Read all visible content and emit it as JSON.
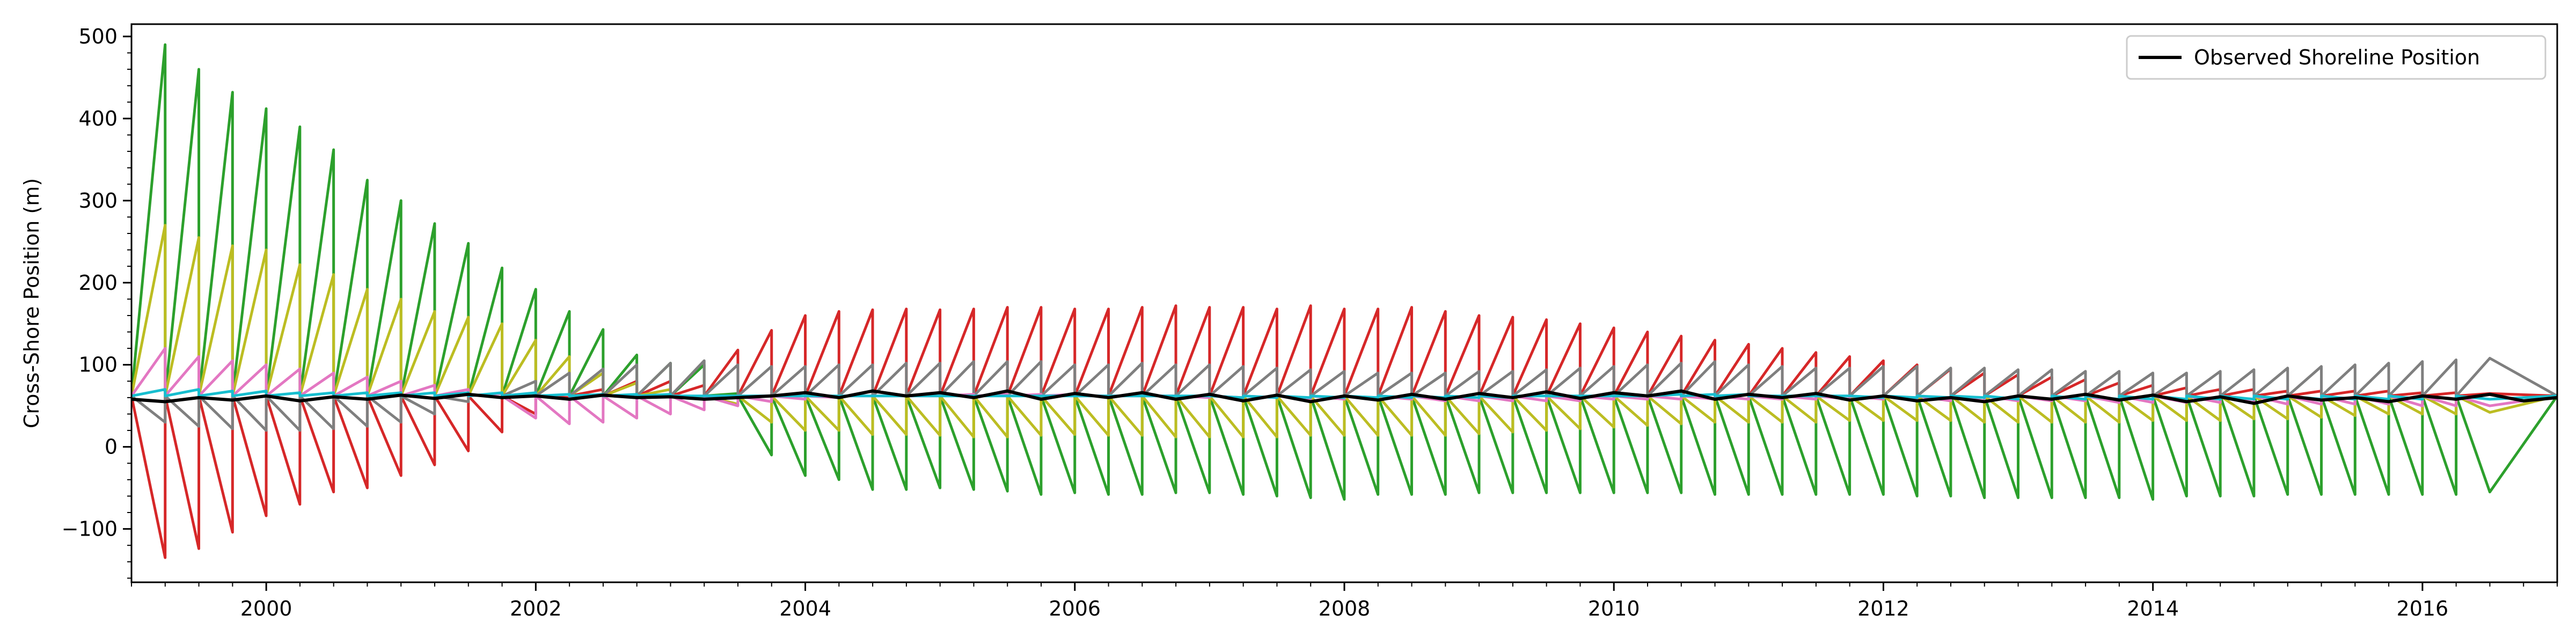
{
  "chart_data": {
    "type": "line",
    "title": "",
    "xlabel": "",
    "ylabel": "Cross-Shore Position (m)",
    "xlim": [
      1999.0,
      2017.0
    ],
    "ylim": [
      -165,
      515
    ],
    "x_ticks": [
      2000,
      2002,
      2004,
      2006,
      2008,
      2010,
      2012,
      2014,
      2016
    ],
    "x_tick_labels": [
      "2000",
      "2002",
      "2004",
      "2006",
      "2008",
      "2010",
      "2012",
      "2014",
      "2016"
    ],
    "y_ticks": [
      -100,
      0,
      100,
      200,
      300,
      400,
      500
    ],
    "y_tick_labels": [
      "−100",
      "0",
      "100",
      "200",
      "300",
      "400",
      "500"
    ],
    "grid": false,
    "legend": {
      "placement": "top-right",
      "entries": [
        "Observed Shoreline Position"
      ]
    },
    "observed": {
      "name": "Observed Shoreline Position",
      "color": "#000000",
      "x": [
        1999.0,
        1999.25,
        1999.5,
        1999.75,
        2000.0,
        2000.25,
        2000.5,
        2000.75,
        2001.0,
        2001.25,
        2001.5,
        2001.75,
        2002.0,
        2002.25,
        2002.5,
        2002.75,
        2003.0,
        2003.25,
        2003.5,
        2003.75,
        2004.0,
        2004.25,
        2004.5,
        2004.75,
        2005.0,
        2005.25,
        2005.5,
        2005.75,
        2006.0,
        2006.25,
        2006.5,
        2006.75,
        2007.0,
        2007.25,
        2007.5,
        2007.75,
        2008.0,
        2008.25,
        2008.5,
        2008.75,
        2009.0,
        2009.25,
        2009.5,
        2009.75,
        2010.0,
        2010.25,
        2010.5,
        2010.75,
        2011.0,
        2011.25,
        2011.5,
        2011.75,
        2012.0,
        2012.25,
        2012.5,
        2012.75,
        2013.0,
        2013.25,
        2013.5,
        2013.75,
        2014.0,
        2014.25,
        2014.5,
        2014.75,
        2015.0,
        2015.25,
        2015.5,
        2015.75,
        2016.0,
        2016.25,
        2016.5,
        2016.75,
        2017.0
      ],
      "y": [
        58,
        55,
        60,
        57,
        62,
        56,
        61,
        58,
        63,
        59,
        64,
        60,
        62,
        58,
        63,
        60,
        61,
        58,
        60,
        62,
        66,
        60,
        68,
        62,
        66,
        60,
        68,
        58,
        65,
        60,
        66,
        58,
        64,
        56,
        63,
        55,
        62,
        57,
        64,
        58,
        65,
        60,
        67,
        59,
        66,
        62,
        68,
        58,
        64,
        60,
        65,
        57,
        62,
        56,
        60,
        55,
        62,
        58,
        64,
        57,
        63,
        55,
        61,
        53,
        62,
        57,
        60,
        55,
        62,
        58,
        64,
        56,
        60
      ]
    },
    "ensemble": {
      "period_years": 0.25,
      "start_year": 1999.0,
      "baseline": 62,
      "members": [
        {
          "color": "#2ca02c",
          "amplitudes": [
            490,
            460,
            432,
            412,
            390,
            362,
            325,
            300,
            272,
            248,
            218,
            192,
            165,
            143,
            112,
            102,
            100,
            65,
            -10,
            -35,
            -40,
            -52,
            -52,
            -50,
            -52,
            -54,
            -58,
            -56,
            -58,
            -58,
            -56,
            -56,
            -58,
            -60,
            -62,
            -64,
            -58,
            -58,
            -58,
            -56,
            -56,
            -56,
            -56,
            -56,
            -56,
            -56,
            -58,
            -58,
            -58,
            -58,
            -58,
            -58,
            -60,
            -60,
            -62,
            -62,
            -62,
            -62,
            -62,
            -64,
            -60,
            -60,
            -60,
            -58,
            -58,
            -58,
            -58,
            -58,
            -58,
            -55
          ]
        },
        {
          "color": "#d62728",
          "amplitudes": [
            -135,
            -124,
            -104,
            -84,
            -70,
            -55,
            -50,
            -35,
            -22,
            -5,
            18,
            40,
            60,
            70,
            80,
            80,
            75,
            118,
            142,
            160,
            165,
            167,
            168,
            167,
            168,
            170,
            170,
            168,
            168,
            170,
            172,
            170,
            170,
            168,
            172,
            168,
            168,
            170,
            165,
            160,
            158,
            155,
            150,
            145,
            140,
            135,
            130,
            125,
            120,
            115,
            110,
            105,
            100,
            95,
            90,
            88,
            85,
            82,
            78,
            75,
            72,
            70,
            70,
            68,
            68,
            68,
            68,
            66,
            66,
            65
          ]
        },
        {
          "color": "#bcbd22",
          "amplitudes": [
            270,
            255,
            245,
            240,
            222,
            210,
            192,
            180,
            165,
            158,
            150,
            130,
            110,
            90,
            78,
            70,
            60,
            52,
            30,
            20,
            20,
            15,
            15,
            14,
            12,
            12,
            14,
            15,
            14,
            14,
            12,
            12,
            12,
            12,
            14,
            14,
            14,
            14,
            14,
            16,
            18,
            20,
            22,
            24,
            26,
            28,
            30,
            30,
            30,
            30,
            32,
            32,
            32,
            32,
            30,
            30,
            30,
            30,
            30,
            32,
            32,
            32,
            34,
            34,
            36,
            38,
            40,
            40,
            40,
            42
          ]
        },
        {
          "color": "#7f7f7f",
          "amplitudes": [
            30,
            25,
            22,
            20,
            20,
            22,
            25,
            30,
            40,
            55,
            65,
            80,
            90,
            95,
            100,
            102,
            105,
            100,
            98,
            98,
            100,
            100,
            102,
            102,
            104,
            104,
            104,
            100,
            100,
            102,
            100,
            100,
            98,
            96,
            94,
            92,
            90,
            90,
            90,
            92,
            92,
            94,
            96,
            98,
            100,
            102,
            104,
            100,
            98,
            96,
            96,
            98,
            98,
            96,
            96,
            94,
            94,
            92,
            92,
            90,
            90,
            92,
            94,
            96,
            98,
            100,
            102,
            104,
            106,
            108
          ]
        },
        {
          "color": "#e377c2",
          "amplitudes": [
            120,
            110,
            105,
            100,
            95,
            90,
            85,
            80,
            75,
            70,
            65,
            35,
            28,
            30,
            35,
            40,
            45,
            50,
            55,
            58,
            60,
            62,
            62,
            62,
            64,
            64,
            64,
            64,
            62,
            62,
            62,
            60,
            60,
            60,
            58,
            58,
            58,
            58,
            56,
            56,
            56,
            56,
            56,
            58,
            58,
            58,
            58,
            58,
            58,
            58,
            58,
            58,
            58,
            56,
            56,
            56,
            56,
            56,
            54,
            54,
            54,
            54,
            54,
            52,
            52,
            52,
            52,
            50,
            50,
            50
          ]
        },
        {
          "color": "#17becf",
          "amplitudes": [
            70,
            70,
            68,
            68,
            66,
            66,
            66,
            66,
            66,
            66,
            66,
            66,
            64,
            64,
            64,
            64,
            62,
            62,
            62,
            62,
            62,
            62,
            62,
            62,
            62,
            62,
            62,
            62,
            62,
            62,
            62,
            62,
            60,
            60,
            60,
            60,
            60,
            60,
            60,
            60,
            60,
            62,
            62,
            62,
            62,
            64,
            64,
            64,
            62,
            62,
            62,
            60,
            60,
            60,
            60,
            58,
            58,
            58,
            58,
            58,
            58,
            58,
            58,
            58,
            58,
            58,
            58,
            58,
            58,
            58
          ]
        }
      ]
    }
  }
}
